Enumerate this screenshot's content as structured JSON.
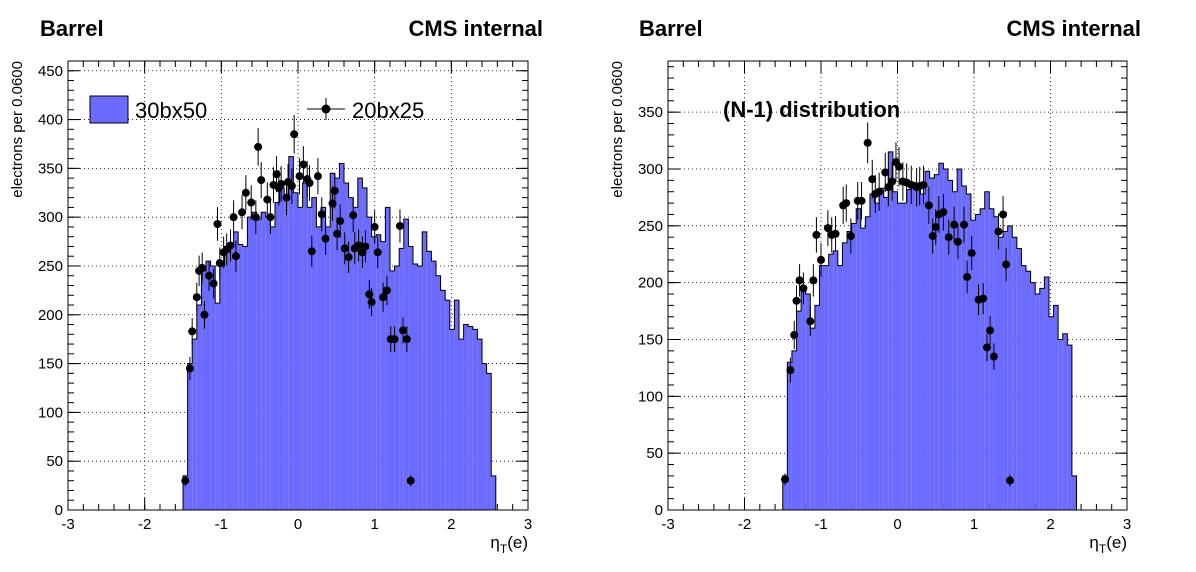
{
  "chart_data": [
    {
      "type": "bar",
      "region_label": "Barrel",
      "experiment_label": "CMS internal",
      "ylabel": "electrons per 0.0600",
      "xlabel_main": "η",
      "xlabel_sub": "T",
      "xlabel_suffix": "(e)",
      "xlim": [
        -3,
        3
      ],
      "ylim": [
        0,
        460
      ],
      "x_ticks": [
        "-3",
        "-2",
        "-1",
        "0",
        "1",
        "2",
        "3"
      ],
      "y_ticks": [
        "0",
        "50",
        "100",
        "150",
        "200",
        "250",
        "300",
        "350",
        "400",
        "450"
      ],
      "grid": true,
      "legend_position": "top",
      "series": [
        {
          "name": "30bx50",
          "style": "filled-histogram",
          "color": "#6b6bff",
          "bin_start": -1.5,
          "bin_width": 0.06,
          "values": [
            35,
            150,
            175,
            210,
            245,
            255,
            250,
            212,
            250,
            270,
            270,
            285,
            272,
            270,
            300,
            305,
            298,
            305,
            300,
            290,
            315,
            330,
            320,
            362,
            325,
            310,
            335,
            310,
            320,
            290,
            310,
            290,
            345,
            340,
            355,
            335,
            320,
            310,
            340,
            330,
            300,
            280,
            282,
            275,
            310,
            245,
            250,
            268,
            298,
            270,
            252,
            250,
            285,
            265,
            255,
            240,
            225,
            215,
            185,
            215,
            175,
            190,
            188,
            185,
            175,
            150,
            140,
            35
          ]
        },
        {
          "name": "20bx25",
          "style": "markers-with-errors",
          "color": "#000000",
          "x": [
            -1.47,
            -1.41,
            -1.38,
            -1.32,
            -1.29,
            -1.25,
            -1.22,
            -1.16,
            -1.1,
            -1.05,
            -1.02,
            -0.97,
            -0.93,
            -0.88,
            -0.84,
            -0.81,
            -0.73,
            -0.68,
            -0.61,
            -0.55,
            -0.52,
            -0.48,
            -0.4,
            -0.36,
            -0.32,
            -0.28,
            -0.25,
            -0.22,
            -0.15,
            -0.13,
            -0.08,
            -0.05,
            0.02,
            0.07,
            0.12,
            0.15,
            0.18,
            0.26,
            0.31,
            0.36,
            0.45,
            0.48,
            0.51,
            0.55,
            0.61,
            0.66,
            0.72,
            0.74,
            0.79,
            0.84,
            0.88,
            0.93,
            0.96,
            1.0,
            1.04,
            1.11,
            1.16,
            1.21,
            1.26,
            1.33,
            1.37,
            1.42,
            1.47
          ],
          "y": [
            30,
            145,
            183,
            218,
            245,
            248,
            200,
            240,
            232,
            293,
            253,
            264,
            267,
            271,
            300,
            260,
            305,
            325,
            315,
            300,
            372,
            338,
            318,
            300,
            333,
            344,
            330,
            334,
            320,
            336,
            332,
            385,
            342,
            354,
            339,
            335,
            265,
            342,
            303,
            278,
            314,
            327,
            283,
            296,
            268,
            259,
            302,
            268,
            271,
            264,
            270,
            221,
            213,
            290,
            264,
            218,
            225,
            175,
            175,
            291,
            184,
            175,
            30
          ]
        }
      ]
    },
    {
      "type": "bar",
      "region_label": "Barrel",
      "experiment_label": "CMS internal",
      "annotation": "(N-1) distribution",
      "ylabel": "electrons per 0.0600",
      "xlabel_main": "η",
      "xlabel_sub": "T",
      "xlabel_suffix": "(e)",
      "xlim": [
        -3,
        3
      ],
      "ylim": [
        0,
        395
      ],
      "x_ticks": [
        "-3",
        "-2",
        "-1",
        "0",
        "1",
        "2",
        "3"
      ],
      "y_ticks": [
        "0",
        "50",
        "100",
        "150",
        "200",
        "250",
        "300",
        "350"
      ],
      "grid": true,
      "series": [
        {
          "name": "30bx50",
          "style": "filled-histogram",
          "color": "#6b6bff",
          "bin_start": -1.5,
          "bin_width": 0.06,
          "values": [
            30,
            130,
            140,
            175,
            195,
            190,
            160,
            180,
            215,
            215,
            225,
            228,
            215,
            235,
            245,
            252,
            265,
            248,
            258,
            278,
            270,
            283,
            275,
            315,
            280,
            270,
            270,
            282,
            288,
            285,
            278,
            298,
            292,
            295,
            305,
            300,
            290,
            280,
            300,
            285,
            278,
            255,
            260,
            265,
            280,
            265,
            258,
            240,
            245,
            250,
            240,
            230,
            215,
            210,
            200,
            190,
            195,
            205,
            170,
            180,
            150,
            155,
            145,
            30
          ]
        },
        {
          "name": "20bx25",
          "style": "markers-with-errors",
          "color": "#000000",
          "x": [
            -1.47,
            -1.4,
            -1.35,
            -1.32,
            -1.28,
            -1.23,
            -1.14,
            -1.1,
            -1.06,
            -1.0,
            -0.91,
            -0.86,
            -0.81,
            -0.71,
            -0.67,
            -0.61,
            -0.52,
            -0.47,
            -0.39,
            -0.33,
            -0.29,
            -0.24,
            -0.16,
            -0.12,
            -0.07,
            -0.02,
            0.02,
            0.07,
            0.12,
            0.18,
            0.25,
            0.29,
            0.34,
            0.41,
            0.46,
            0.5,
            0.54,
            0.6,
            0.67,
            0.74,
            0.79,
            0.87,
            0.91,
            0.97,
            1.06,
            1.12,
            1.17,
            1.21,
            1.26,
            1.32,
            1.38,
            1.42,
            1.47
          ],
          "y": [
            27,
            123,
            154,
            184,
            202,
            195,
            166,
            202,
            242,
            220,
            248,
            242,
            243,
            268,
            270,
            241,
            272,
            272,
            323,
            291,
            278,
            280,
            297,
            284,
            289,
            306,
            302,
            289,
            288,
            286,
            284,
            285,
            286,
            268,
            241,
            249,
            260,
            262,
            240,
            251,
            236,
            251,
            205,
            226,
            185,
            186,
            143,
            158,
            135,
            245,
            260,
            216,
            26
          ]
        }
      ]
    }
  ]
}
